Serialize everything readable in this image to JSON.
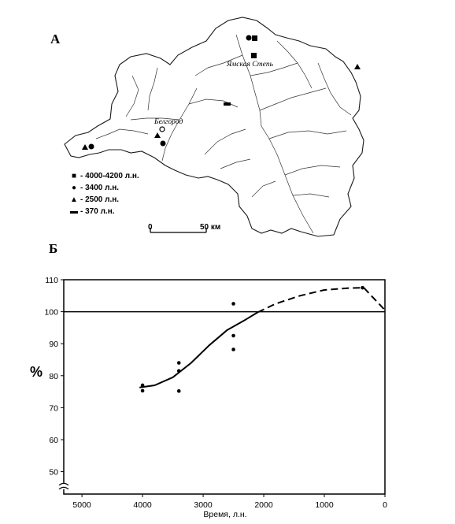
{
  "panels": {
    "map_label": "А",
    "chart_label": "Б"
  },
  "map": {
    "city_label": "Белгород",
    "steppe_label": "Ямская Степь",
    "legend": [
      {
        "symbol": "square",
        "text": "- 4000-4200 л.н."
      },
      {
        "symbol": "circle",
        "text": "- 3400 л.н."
      },
      {
        "symbol": "triangle",
        "text": "- 2500 л.н."
      },
      {
        "symbol": "dash",
        "text": "- 370 л.н."
      }
    ],
    "scale": {
      "start_label": "0",
      "end_label": "50 км"
    }
  },
  "chart_data": {
    "type": "scatter",
    "title": "",
    "xlabel": "Время, л.н.",
    "ylabel": "%",
    "x_reversed": true,
    "xlim": [
      5300,
      0
    ],
    "ylim": [
      43,
      110
    ],
    "axis_break": true,
    "x_ticks": [
      5000,
      4000,
      3000,
      2000,
      1000,
      0
    ],
    "y_ticks": [
      50,
      60,
      70,
      80,
      90,
      100,
      110
    ],
    "reference_line": 100,
    "grid": false,
    "series": [
      {
        "kind": "points",
        "points": [
          {
            "x": 4000,
            "y": 77
          },
          {
            "x": 4000,
            "y": 75.3
          },
          {
            "x": 3400,
            "y": 84
          },
          {
            "x": 3400,
            "y": 81.5
          },
          {
            "x": 3400,
            "y": 75.2
          },
          {
            "x": 2500,
            "y": 102.5
          },
          {
            "x": 2500,
            "y": 92.5
          },
          {
            "x": 2500,
            "y": 88.2
          },
          {
            "x": 370,
            "y": 107.5
          }
        ]
      },
      {
        "kind": "trend-solid",
        "points": [
          {
            "x": 4050,
            "y": 76.3
          },
          {
            "x": 3800,
            "y": 77
          },
          {
            "x": 3500,
            "y": 79.5
          },
          {
            "x": 3200,
            "y": 84
          },
          {
            "x": 2900,
            "y": 89.5
          },
          {
            "x": 2600,
            "y": 94.3
          },
          {
            "x": 2300,
            "y": 97.5
          },
          {
            "x": 2100,
            "y": 99.8
          }
        ]
      },
      {
        "kind": "trend-dashed",
        "points": [
          {
            "x": 2100,
            "y": 99.8
          },
          {
            "x": 1800,
            "y": 102.5
          },
          {
            "x": 1400,
            "y": 105
          },
          {
            "x": 1000,
            "y": 106.8
          },
          {
            "x": 600,
            "y": 107.4
          },
          {
            "x": 350,
            "y": 107.5
          },
          {
            "x": 0,
            "y": 100.5
          }
        ]
      }
    ]
  }
}
